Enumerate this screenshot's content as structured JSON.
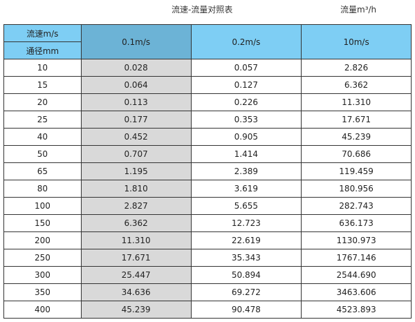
{
  "title": "流速-流量对照表",
  "unit_caption": "流量m³/h",
  "header": {
    "velocity_label": "流速m/s",
    "diameter_label": "通径mm",
    "columns": [
      "0.1m/s",
      "0.2m/s",
      "10m/s"
    ]
  },
  "colors": {
    "header": "#7ecef4",
    "header_highlight": "#6cb3d6",
    "column_highlight": "#d9d9d9"
  },
  "rows": [
    [
      "10",
      "0.028",
      "0.057",
      "2.826"
    ],
    [
      "15",
      "0.064",
      "0.127",
      "6.362"
    ],
    [
      "20",
      "0.113",
      "0.226",
      "11.310"
    ],
    [
      "25",
      "0.177",
      "0.353",
      "17.671"
    ],
    [
      "40",
      "0.452",
      "0.905",
      "45.239"
    ],
    [
      "50",
      "0.707",
      "1.414",
      "70.686"
    ],
    [
      "65",
      "1.195",
      "2.389",
      "119.459"
    ],
    [
      "80",
      "1.810",
      "3.619",
      "180.956"
    ],
    [
      "100",
      "2.827",
      "5.655",
      "282.743"
    ],
    [
      "150",
      "6.362",
      "12.723",
      "636.173"
    ],
    [
      "200",
      "11.310",
      "22.619",
      "1130.973"
    ],
    [
      "250",
      "17.671",
      "35.343",
      "1767.146"
    ],
    [
      "300",
      "25.447",
      "50.894",
      "2544.690"
    ],
    [
      "350",
      "34.636",
      "69.272",
      "3463.606"
    ],
    [
      "400",
      "45.239",
      "90.478",
      "4523.893"
    ]
  ]
}
